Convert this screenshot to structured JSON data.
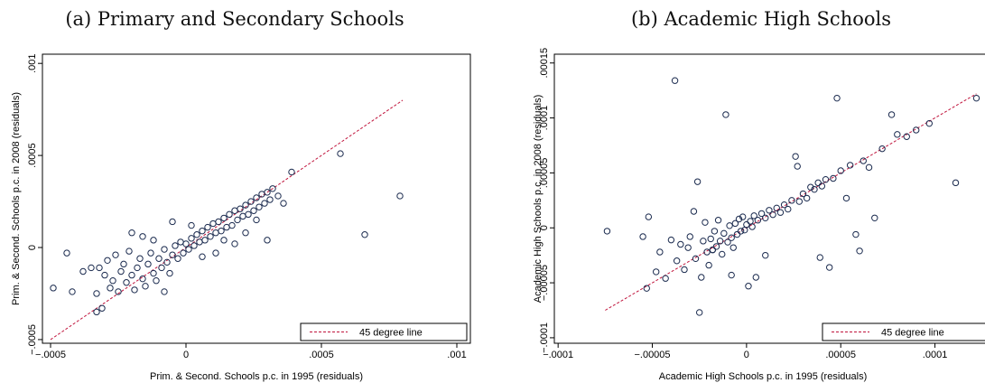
{
  "colors": {
    "marker": "#1a2a4e",
    "line": "#c0143c",
    "frame": "#000000"
  },
  "chart_data": [
    {
      "type": "scatter",
      "title": "(a) Primary and Secondary Schools",
      "xlabel": "Prim. & Second. Schools p.c. in 1995 (residuals)",
      "ylabel": "Prim. & Second. Schools p.c. in 2008 (residuals)",
      "xlim": [
        -0.00053,
        0.00105
      ],
      "ylim": [
        -0.00052,
        0.00105
      ],
      "xticks": [
        -0.0005,
        0,
        0.0005,
        0.001
      ],
      "xtick_labels": [
        "−.0005",
        "0",
        ".0005",
        ".001"
      ],
      "yticks": [
        -0.0005,
        0,
        0.0005,
        0.001
      ],
      "ytick_labels": [
        "−.0005",
        "0",
        ".0005",
        ".001"
      ],
      "legend": {
        "label": "45 degree line",
        "position": "bottom-right"
      },
      "reference_line": {
        "from": [
          -0.0005,
          -0.0005
        ],
        "to": [
          0.0008,
          0.0008
        ]
      },
      "grid": false,
      "points": [
        [
          -0.00049,
          -0.00022
        ],
        [
          -0.00044,
          -3e-05
        ],
        [
          -0.00042,
          -0.00024
        ],
        [
          -0.00038,
          -0.00013
        ],
        [
          -0.00035,
          -0.00011
        ],
        [
          -0.00033,
          -0.00025
        ],
        [
          -0.00033,
          -0.00035
        ],
        [
          -0.00031,
          -0.00033
        ],
        [
          -0.00032,
          -0.00011
        ],
        [
          -0.0003,
          -0.00015
        ],
        [
          -0.00029,
          -7e-05
        ],
        [
          -0.00028,
          -0.00022
        ],
        [
          -0.00027,
          -0.00018
        ],
        [
          -0.00026,
          -4e-05
        ],
        [
          -0.00025,
          -0.00024
        ],
        [
          -0.00024,
          -0.00013
        ],
        [
          -0.00023,
          -9e-05
        ],
        [
          -0.00022,
          -0.00019
        ],
        [
          -0.00021,
          -2e-05
        ],
        [
          -0.0002,
          -0.00015
        ],
        [
          -0.00019,
          -0.00023
        ],
        [
          -0.00018,
          -0.00011
        ],
        [
          -0.00017,
          -6e-05
        ],
        [
          -0.00016,
          -0.00017
        ],
        [
          -0.00015,
          -0.00021
        ],
        [
          -0.00014,
          -9e-05
        ],
        [
          -0.00013,
          -3e-05
        ],
        [
          -0.00012,
          -0.00014
        ],
        [
          -0.00011,
          -0.00018
        ],
        [
          -0.0001,
          -6e-05
        ],
        [
          -9e-05,
          -0.00011
        ],
        [
          -8e-05,
          -1e-05
        ],
        [
          -7e-05,
          -8e-05
        ],
        [
          -6e-05,
          -0.00014
        ],
        [
          -5e-05,
          -4e-05
        ],
        [
          -4e-05,
          1e-05
        ],
        [
          -3e-05,
          -6e-05
        ],
        [
          -2e-05,
          3e-05
        ],
        [
          -1e-05,
          -3e-05
        ],
        [
          0.0,
          2e-05
        ],
        [
          1e-05,
          -1e-05
        ],
        [
          2e-05,
          5e-05
        ],
        [
          3e-05,
          1e-05
        ],
        [
          4e-05,
          7e-05
        ],
        [
          5e-05,
          3e-05
        ],
        [
          6e-05,
          9e-05
        ],
        [
          7e-05,
          4e-05
        ],
        [
          8e-05,
          0.00011
        ],
        [
          9e-05,
          6e-05
        ],
        [
          0.0001,
          0.00013
        ],
        [
          0.00011,
          8e-05
        ],
        [
          0.00012,
          0.00014
        ],
        [
          0.00013,
          9e-05
        ],
        [
          0.00014,
          0.00016
        ],
        [
          0.00015,
          0.00011
        ],
        [
          0.00016,
          0.00018
        ],
        [
          0.00017,
          0.00012
        ],
        [
          0.00018,
          0.0002
        ],
        [
          0.00019,
          0.00015
        ],
        [
          0.0002,
          0.00021
        ],
        [
          0.00021,
          0.00017
        ],
        [
          0.00022,
          0.00023
        ],
        [
          0.00023,
          0.00018
        ],
        [
          0.00024,
          0.00025
        ],
        [
          0.00025,
          0.0002
        ],
        [
          0.00026,
          0.00027
        ],
        [
          0.00027,
          0.00022
        ],
        [
          0.00028,
          0.00029
        ],
        [
          0.00029,
          0.00024
        ],
        [
          0.0003,
          0.0003
        ],
        [
          0.00031,
          0.00026
        ],
        [
          0.00032,
          0.00032
        ],
        [
          0.00034,
          0.00028
        ],
        [
          0.00036,
          0.00024
        ],
        [
          0.00039,
          0.00041
        ],
        [
          -0.00012,
          4e-05
        ],
        [
          -0.0002,
          8e-05
        ],
        [
          -5e-05,
          0.00014
        ],
        [
          2e-05,
          0.00012
        ],
        [
          6e-05,
          -5e-05
        ],
        [
          0.00011,
          -3e-05
        ],
        [
          0.00018,
          2e-05
        ],
        [
          0.00022,
          8e-05
        ],
        [
          -8e-05,
          -0.00024
        ],
        [
          0.00014,
          4e-05
        ],
        [
          0.00026,
          0.00015
        ],
        [
          0.0003,
          4e-05
        ],
        [
          -0.00016,
          6e-05
        ],
        [
          0.00057,
          0.00051
        ],
        [
          0.00066,
          7e-05
        ],
        [
          0.00079,
          0.00028
        ]
      ]
    },
    {
      "type": "scatter",
      "title": "(b) Academic High Schools",
      "xlabel": "Academic High Schools p.c. in 1995 (residuals)",
      "ylabel": "Academic High Schools p.c. in 2008 (residuals)",
      "xlim": [
        -0.000102,
        0.000128
      ],
      "ylim": [
        -0.000105,
        0.000158
      ],
      "xticks": [
        -0.0001,
        -5e-05,
        0,
        5e-05,
        0.0001
      ],
      "xtick_labels": [
        "−.0001",
        "−.00005",
        "0",
        ".00005",
        ".0001"
      ],
      "yticks": [
        -0.0001,
        -5e-05,
        0,
        5e-05,
        0.0001,
        0.00015
      ],
      "ytick_labels": [
        "−.0001",
        "−.00005",
        "0",
        ".00005",
        ".0001",
        ".00015"
      ],
      "legend": {
        "label": "45 degree line",
        "position": "bottom-right"
      },
      "reference_line": {
        "from": [
          -7.5e-05,
          -7.5e-05
        ],
        "to": [
          0.000122,
          0.000122
        ]
      },
      "grid": false,
      "points": [
        [
          -7.4e-05,
          -3e-06
        ],
        [
          -5.5e-05,
          -8e-06
        ],
        [
          -5.3e-05,
          -5.5e-05
        ],
        [
          -5.2e-05,
          1e-05
        ],
        [
          -4.8e-05,
          -4e-05
        ],
        [
          -4.6e-05,
          -2.2e-05
        ],
        [
          -4.3e-05,
          -4.6e-05
        ],
        [
          -4e-05,
          -1.1e-05
        ],
        [
          -3.8e-05,
          0.000134
        ],
        [
          -3.7e-05,
          -3e-05
        ],
        [
          -3.5e-05,
          -1.5e-05
        ],
        [
          -3.3e-05,
          -3.8e-05
        ],
        [
          -3.1e-05,
          -1.8e-05
        ],
        [
          -3e-05,
          -8e-06
        ],
        [
          -2.8e-05,
          1.5e-05
        ],
        [
          -2.7e-05,
          -2.8e-05
        ],
        [
          -2.6e-05,
          4.2e-05
        ],
        [
          -2.5e-05,
          -7.7e-05
        ],
        [
          -2.4e-05,
          -4.5e-05
        ],
        [
          -2.3e-05,
          -1.2e-05
        ],
        [
          -2.2e-05,
          5e-06
        ],
        [
          -2.1e-05,
          -2.2e-05
        ],
        [
          -2e-05,
          -3.4e-05
        ],
        [
          -1.9e-05,
          -1e-05
        ],
        [
          -1.8e-05,
          -2e-05
        ],
        [
          -1.7e-05,
          -3e-06
        ],
        [
          -1.6e-05,
          -1.7e-05
        ],
        [
          -1.5e-05,
          7e-06
        ],
        [
          -1.4e-05,
          -1.2e-05
        ],
        [
          -1.3e-05,
          -2.4e-05
        ],
        [
          -1.2e-05,
          -5e-06
        ],
        [
          -1.1e-05,
          0.000103
        ],
        [
          -1e-05,
          -1.3e-05
        ],
        [
          -9e-06,
          2e-06
        ],
        [
          -8e-06,
          -9e-06
        ],
        [
          -7e-06,
          -1.8e-05
        ],
        [
          -6e-06,
          4e-06
        ],
        [
          -5e-06,
          -6e-06
        ],
        [
          -4e-06,
          8e-06
        ],
        [
          -3e-06,
          -3e-06
        ],
        [
          -2e-06,
          1e-05
        ],
        [
          -1e-06,
          -2e-06
        ],
        [
          0.0,
          3e-06
        ],
        [
          1e-06,
          -5.3e-05
        ],
        [
          2e-06,
          6e-06
        ],
        [
          3e-06,
          1e-06
        ],
        [
          4e-06,
          1.1e-05
        ],
        [
          5e-06,
          -4.5e-05
        ],
        [
          6e-06,
          7e-06
        ],
        [
          8e-06,
          1.3e-05
        ],
        [
          1e-05,
          9e-06
        ],
        [
          1.2e-05,
          1.6e-05
        ],
        [
          1.4e-05,
          1.2e-05
        ],
        [
          1.6e-05,
          1.8e-05
        ],
        [
          1.8e-05,
          1.4e-05
        ],
        [
          2e-05,
          2.1e-05
        ],
        [
          2.2e-05,
          1.7e-05
        ],
        [
          2.4e-05,
          2.5e-05
        ],
        [
          2.6e-05,
          6.5e-05
        ],
        [
          2.7e-05,
          5.6e-05
        ],
        [
          2.8e-05,
          2.4e-05
        ],
        [
          3e-05,
          3.1e-05
        ],
        [
          3.2e-05,
          2.7e-05
        ],
        [
          3.4e-05,
          3.7e-05
        ],
        [
          3.6e-05,
          3.5e-05
        ],
        [
          3.8e-05,
          4.1e-05
        ],
        [
          4e-05,
          3.8e-05
        ],
        [
          4.2e-05,
          4.4e-05
        ],
        [
          4.4e-05,
          -3.6e-05
        ],
        [
          4.6e-05,
          4.5e-05
        ],
        [
          4.8e-05,
          0.000118
        ],
        [
          5e-05,
          5.2e-05
        ],
        [
          5.3e-05,
          2.7e-05
        ],
        [
          5.5e-05,
          5.7e-05
        ],
        [
          5.8e-05,
          -6e-06
        ],
        [
          6e-05,
          -2.1e-05
        ],
        [
          6.2e-05,
          6.1e-05
        ],
        [
          6.5e-05,
          5.5e-05
        ],
        [
          6.8e-05,
          9e-06
        ],
        [
          7.2e-05,
          7.2e-05
        ],
        [
          7.7e-05,
          0.000103
        ],
        [
          8e-05,
          8.5e-05
        ],
        [
          8.5e-05,
          8.3e-05
        ],
        [
          9e-05,
          8.9e-05
        ],
        [
          9.7e-05,
          9.5e-05
        ],
        [
          0.000111,
          4.1e-05
        ],
        [
          0.000122,
          0.000118
        ],
        [
          3.9e-05,
          -2.7e-05
        ],
        [
          -1.8e-05,
          -2e-05
        ],
        [
          -8e-06,
          -4.3e-05
        ],
        [
          1e-05,
          -2.5e-05
        ]
      ]
    }
  ]
}
